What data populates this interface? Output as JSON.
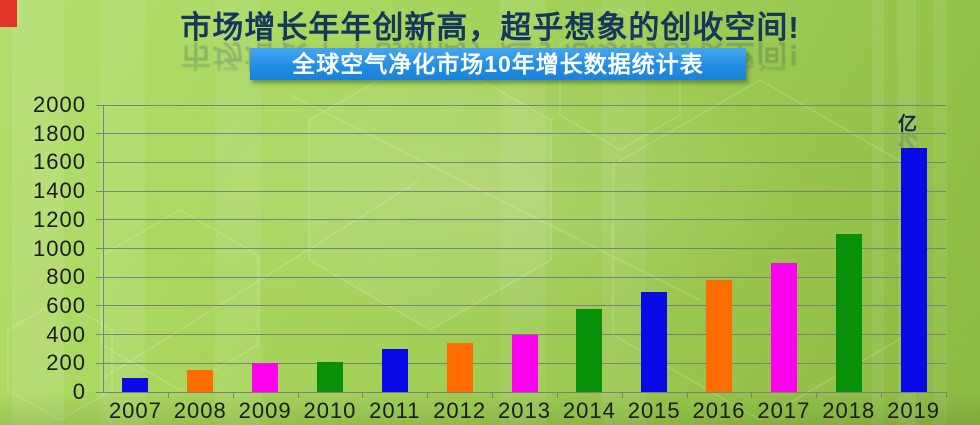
{
  "header": {
    "title": "市场增长年年创新高，超乎想象的创收空间!",
    "subtitle": "全球空气净化市场10年增长数据统计表"
  },
  "chart_data": {
    "type": "bar",
    "title": "全球空气净化市场10年增长数据统计表",
    "unit_label": "亿",
    "categories": [
      "2007",
      "2008",
      "2009",
      "2010",
      "2011",
      "2012",
      "2013",
      "2014",
      "2015",
      "2016",
      "2017",
      "2018",
      "2019"
    ],
    "values": [
      100,
      150,
      200,
      210,
      300,
      340,
      400,
      580,
      700,
      780,
      900,
      1100,
      1700
    ],
    "bar_color_cycle": [
      "#0a0ae8",
      "#ff6c00",
      "#ff00ee",
      "#089108"
    ],
    "ylim": [
      0,
      2000
    ],
    "ytick_step": 200,
    "ytick_labels": [
      "0",
      "200",
      "400",
      "600",
      "800",
      "1000",
      "1200",
      "1400",
      "1600",
      "1800",
      "2000"
    ],
    "grid": true,
    "legend": "none",
    "xlabel": "",
    "ylabel": ""
  },
  "colors": {
    "title_text": "#17365d",
    "subtitle_bg": "#2094ec",
    "subtitle_text": "#ffffff",
    "axis_text": "#1c1c1c",
    "gridline": "#7f7f7f",
    "corner_accent": "#e13327",
    "background_green": "#a0cd55"
  }
}
